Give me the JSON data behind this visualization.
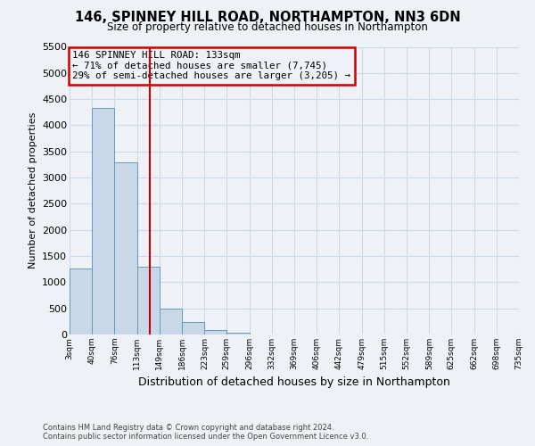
{
  "title": "146, SPINNEY HILL ROAD, NORTHAMPTON, NN3 6DN",
  "subtitle": "Size of property relative to detached houses in Northampton",
  "xlabel": "Distribution of detached houses by size in Northampton",
  "ylabel": "Number of detached properties",
  "footer_line1": "Contains HM Land Registry data © Crown copyright and database right 2024.",
  "footer_line2": "Contains public sector information licensed under the Open Government Licence v3.0.",
  "bin_edges": [
    3,
    40,
    76,
    113,
    149,
    186,
    223,
    259,
    296,
    332,
    369,
    406,
    442,
    479,
    515,
    552,
    589,
    625,
    662,
    698,
    735
  ],
  "bin_labels": [
    "3sqm",
    "40sqm",
    "76sqm",
    "113sqm",
    "149sqm",
    "186sqm",
    "223sqm",
    "259sqm",
    "296sqm",
    "332sqm",
    "369sqm",
    "406sqm",
    "442sqm",
    "479sqm",
    "515sqm",
    "552sqm",
    "589sqm",
    "625sqm",
    "662sqm",
    "698sqm",
    "735sqm"
  ],
  "bar_heights": [
    1270,
    4330,
    3300,
    1290,
    490,
    240,
    90,
    40,
    0,
    0,
    0,
    0,
    0,
    0,
    0,
    0,
    0,
    0,
    0,
    0
  ],
  "bar_color": "#c8d8e8",
  "bar_edge_color": "#6699bb",
  "property_line_x": 133,
  "property_line_color": "#cc0000",
  "annotation_title": "146 SPINNEY HILL ROAD: 133sqm",
  "annotation_line1": "← 71% of detached houses are smaller (7,745)",
  "annotation_line2": "29% of semi-detached houses are larger (3,205) →",
  "annotation_box_edge_color": "#cc0000",
  "ylim": [
    0,
    5500
  ],
  "yticks": [
    0,
    500,
    1000,
    1500,
    2000,
    2500,
    3000,
    3500,
    4000,
    4500,
    5000,
    5500
  ],
  "grid_color": "#ccd9e6",
  "bg_color": "#eef2f7"
}
